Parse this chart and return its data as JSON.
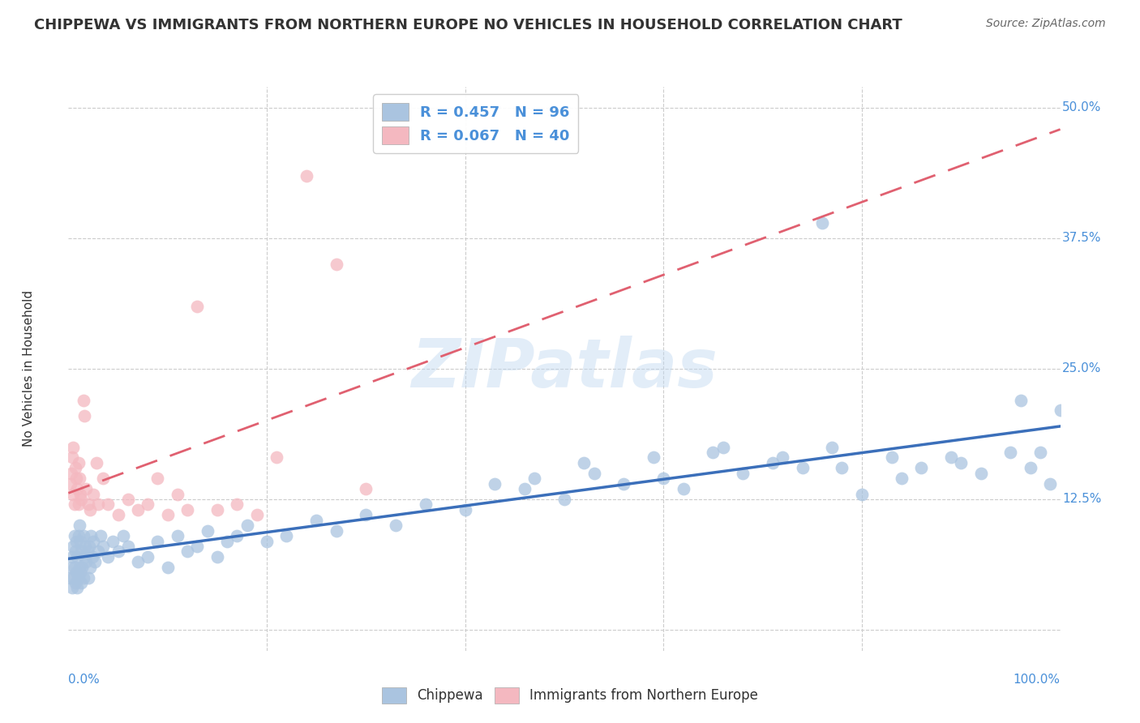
{
  "title": "CHIPPEWA VS IMMIGRANTS FROM NORTHERN EUROPE NO VEHICLES IN HOUSEHOLD CORRELATION CHART",
  "source": "Source: ZipAtlas.com",
  "ylabel": "No Vehicles in Household",
  "watermark": "ZIPatlas",
  "xlim": [
    0.0,
    100.0
  ],
  "ylim": [
    -2.0,
    52.0
  ],
  "yticks": [
    0.0,
    12.5,
    25.0,
    37.5,
    50.0
  ],
  "xticks": [
    0.0,
    20.0,
    40.0,
    60.0,
    80.0,
    100.0
  ],
  "title_color": "#333333",
  "source_color": "#666666",
  "axis_color": "#4a90d9",
  "grid_color": "#cccccc",
  "background_color": "#ffffff",
  "chippewa_color": "#aac4e0",
  "chippewa_line": "#3b6fba",
  "immigrant_color": "#f4b8c0",
  "immigrant_line": "#e06070",
  "chippewa_R": 0.457,
  "chippewa_N": 96,
  "immigrant_R": 0.067,
  "immigrant_N": 40,
  "chippewa_x": [
    0.2,
    0.3,
    0.4,
    0.4,
    0.5,
    0.5,
    0.6,
    0.6,
    0.7,
    0.7,
    0.8,
    0.8,
    0.9,
    0.9,
    1.0,
    1.0,
    1.1,
    1.1,
    1.2,
    1.2,
    1.3,
    1.3,
    1.4,
    1.5,
    1.5,
    1.6,
    1.7,
    1.8,
    1.9,
    2.0,
    2.1,
    2.2,
    2.3,
    2.4,
    2.5,
    2.7,
    3.0,
    3.2,
    3.5,
    4.0,
    4.5,
    5.0,
    5.5,
    6.0,
    7.0,
    8.0,
    9.0,
    10.0,
    11.0,
    12.0,
    13.0,
    14.0,
    15.0,
    16.0,
    17.0,
    18.0,
    20.0,
    22.0,
    25.0,
    27.0,
    30.0,
    33.0,
    36.0,
    40.0,
    43.0,
    46.0,
    50.0,
    53.0,
    56.0,
    59.0,
    62.0,
    65.0,
    68.0,
    71.0,
    74.0,
    77.0,
    80.0,
    83.0,
    86.0,
    89.0,
    92.0,
    95.0,
    97.0,
    98.0,
    99.0,
    100.0,
    47.0,
    52.0,
    60.0,
    72.0,
    78.0,
    84.0,
    90.0,
    96.0,
    66.0,
    76.0
  ],
  "chippewa_y": [
    5.0,
    6.0,
    4.0,
    7.0,
    5.0,
    8.0,
    6.0,
    9.0,
    4.5,
    7.5,
    5.5,
    8.5,
    4.0,
    7.0,
    5.0,
    9.0,
    6.0,
    10.0,
    5.5,
    8.5,
    4.5,
    7.5,
    6.0,
    5.0,
    9.0,
    7.0,
    8.0,
    6.5,
    7.5,
    5.0,
    8.0,
    6.0,
    9.0,
    7.0,
    8.5,
    6.5,
    7.5,
    9.0,
    8.0,
    7.0,
    8.5,
    7.5,
    9.0,
    8.0,
    6.5,
    7.0,
    8.5,
    6.0,
    9.0,
    7.5,
    8.0,
    9.5,
    7.0,
    8.5,
    9.0,
    10.0,
    8.5,
    9.0,
    10.5,
    9.5,
    11.0,
    10.0,
    12.0,
    11.5,
    14.0,
    13.5,
    12.5,
    15.0,
    14.0,
    16.5,
    13.5,
    17.0,
    15.0,
    16.0,
    15.5,
    17.5,
    13.0,
    16.5,
    15.5,
    16.5,
    15.0,
    17.0,
    15.5,
    17.0,
    14.0,
    21.0,
    14.5,
    16.0,
    14.5,
    16.5,
    15.5,
    14.5,
    16.0,
    22.0,
    17.5,
    39.0
  ],
  "immigrant_x": [
    0.2,
    0.3,
    0.4,
    0.5,
    0.5,
    0.6,
    0.7,
    0.8,
    0.9,
    1.0,
    1.0,
    1.1,
    1.2,
    1.3,
    1.5,
    1.6,
    1.8,
    2.0,
    2.2,
    2.5,
    2.8,
    3.0,
    3.5,
    4.0,
    5.0,
    6.0,
    7.0,
    8.0,
    9.0,
    10.0,
    11.0,
    12.0,
    13.0,
    15.0,
    17.0,
    19.0,
    21.0,
    24.0,
    27.0,
    30.0
  ],
  "immigrant_y": [
    14.0,
    15.0,
    16.5,
    13.0,
    17.5,
    12.0,
    15.5,
    14.5,
    13.5,
    12.0,
    16.0,
    14.5,
    13.0,
    12.5,
    22.0,
    20.5,
    13.5,
    12.0,
    11.5,
    13.0,
    16.0,
    12.0,
    14.5,
    12.0,
    11.0,
    12.5,
    11.5,
    12.0,
    14.5,
    11.0,
    13.0,
    11.5,
    31.0,
    11.5,
    12.0,
    11.0,
    16.5,
    43.5,
    35.0,
    13.5
  ]
}
